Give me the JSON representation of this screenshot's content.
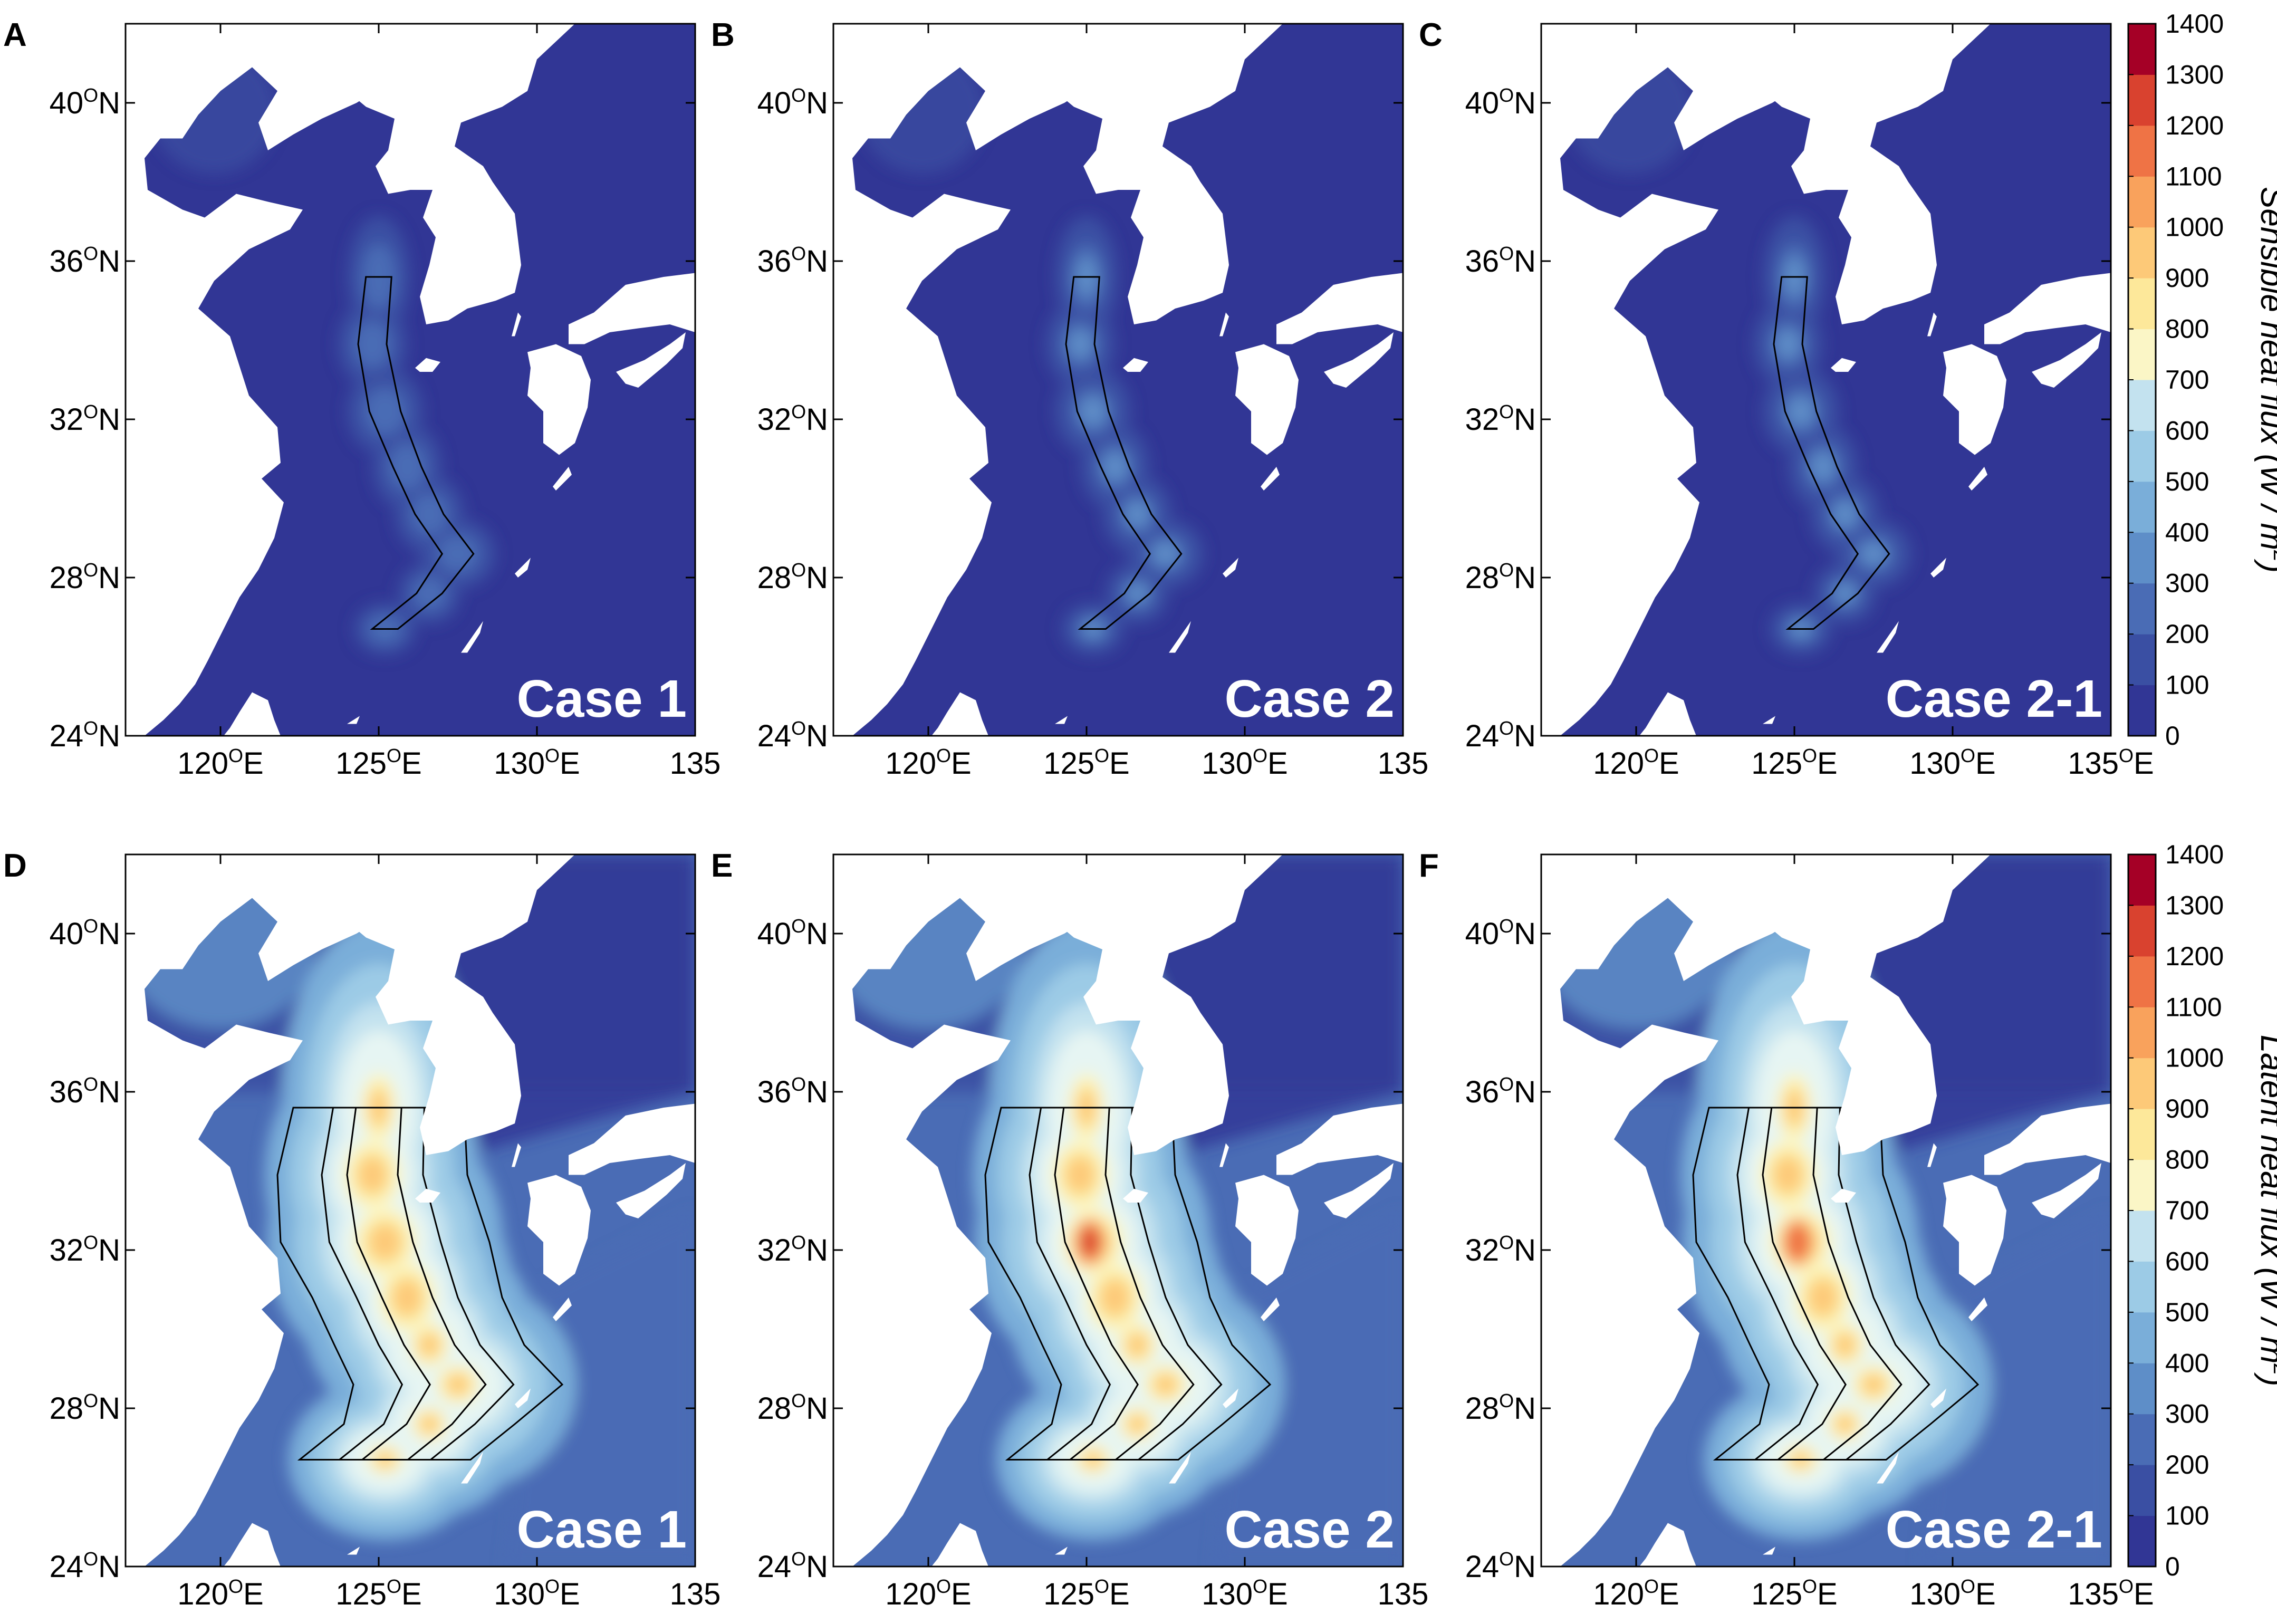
{
  "panels": [
    {
      "id": "A",
      "letter": "A",
      "case": "Case 1",
      "field": "sensible"
    },
    {
      "id": "B",
      "letter": "B",
      "case": "Case 2",
      "field": "sensible"
    },
    {
      "id": "C",
      "letter": "C",
      "case": "Case 2-1",
      "field": "sensible"
    },
    {
      "id": "D",
      "letter": "D",
      "case": "Case 1",
      "field": "latent"
    },
    {
      "id": "E",
      "letter": "E",
      "case": "Case 2",
      "field": "latent"
    },
    {
      "id": "F",
      "letter": "F",
      "case": "Case 2-1",
      "field": "latent"
    }
  ],
  "axes": {
    "lon_range": [
      117,
      135
    ],
    "lat_range": [
      24,
      42
    ],
    "lon_ticks": [
      {
        "value": 120,
        "num": "120",
        "deg": "O",
        "suffix": "E"
      },
      {
        "value": 125,
        "num": "125",
        "deg": "O",
        "suffix": "E"
      },
      {
        "value": 130,
        "num": "130",
        "deg": "O",
        "suffix": "E"
      },
      {
        "value": 135,
        "num": "135",
        "deg": "",
        "suffix": ""
      }
    ],
    "lon_tick_last_col": {
      "value": 135,
      "num": "135",
      "deg": "O",
      "suffix": "E"
    },
    "lat_ticks": [
      {
        "value": 24,
        "num": "24",
        "deg": "O",
        "suffix": "N"
      },
      {
        "value": 28,
        "num": "28",
        "deg": "O",
        "suffix": "N"
      },
      {
        "value": 32,
        "num": "32",
        "deg": "O",
        "suffix": "N"
      },
      {
        "value": 36,
        "num": "36",
        "deg": "O",
        "suffix": "N"
      },
      {
        "value": 40,
        "num": "40",
        "deg": "O",
        "suffix": "N"
      }
    ]
  },
  "colorbars": [
    {
      "id": "sensible",
      "title": "Sensible heat flux (W / m",
      "title_sup": "2",
      "title_close": ")"
    },
    {
      "id": "latent",
      "title": "Latent heat flux (W / m",
      "title_sup": "2",
      "title_close": ")"
    }
  ],
  "colorbar_ticks": [
    0,
    100,
    200,
    300,
    400,
    500,
    600,
    700,
    800,
    900,
    1000,
    1100,
    1200,
    1300,
    1400
  ],
  "colors": {
    "land": "#ffffff",
    "low": "#313695",
    "mid": "#e0f3f8",
    "high": "#a50026",
    "label": "#ffffff"
  },
  "colormap": [
    "#313695",
    "#3a4fa3",
    "#4a6cb5",
    "#5e8ec8",
    "#7aaed9",
    "#9ccbe6",
    "#c3e2ef",
    "#e6f5f3",
    "#fbf6c6",
    "#fde89a",
    "#fdc978",
    "#f9a25c",
    "#ef7345",
    "#d9422f",
    "#a50026"
  ]
}
